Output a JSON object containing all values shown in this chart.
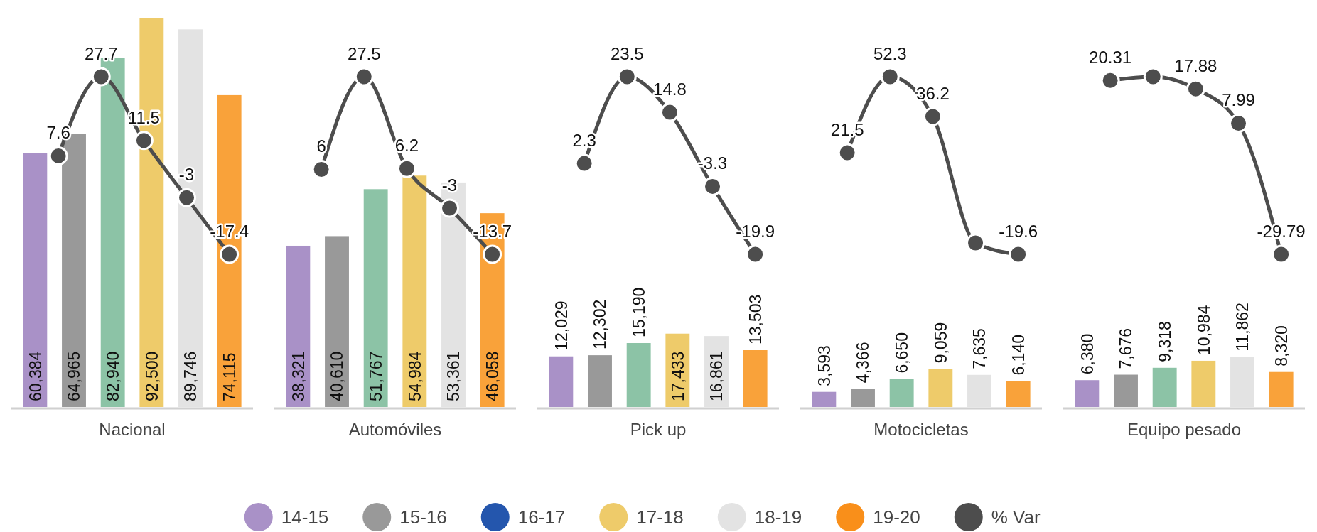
{
  "chart_data": [
    {
      "type": "bar",
      "xlabel": "Nacional",
      "categories": [
        null,
        null,
        null,
        null,
        null,
        null
      ],
      "series": [
        {
          "colors": [
            "#a991c7",
            "#999999",
            "#8cc3a6",
            "#eecb6a",
            "#e3e3e3",
            "#f9a23a"
          ],
          "values": [
            60384,
            64965,
            82940,
            92500,
            89746,
            74115
          ],
          "value_labels": [
            "60,384",
            "64,965",
            "82,940",
            "92,500",
            "89,746",
            "74,115"
          ]
        }
      ]
    },
    {
      "type": "line",
      "categories": [
        null,
        null,
        null,
        null,
        null
      ],
      "marker": "circle",
      "series": [
        {
          "color": "#4d4d4d",
          "values": [
            7.6,
            27.7,
            11.5,
            -3,
            -17.4
          ],
          "value_labels": [
            "7.6",
            "27.7",
            "11.5",
            "-3",
            "-17.4"
          ]
        }
      ]
    },
    {
      "type": "bar",
      "xlabel": "Automóviles",
      "categories": [
        null,
        null,
        null,
        null,
        null,
        null
      ],
      "series": [
        {
          "colors": [
            "#a991c7",
            "#999999",
            "#8cc3a6",
            "#eecb6a",
            "#e3e3e3",
            "#f9a23a"
          ],
          "values": [
            38321,
            40610,
            51767,
            54984,
            53361,
            46058
          ],
          "value_labels": [
            "38,321",
            "40,610",
            "51,767",
            "54,984",
            "53,361",
            "46,058"
          ]
        }
      ]
    },
    {
      "type": "line",
      "categories": [
        null,
        null,
        null,
        null,
        null
      ],
      "marker": "circle",
      "series": [
        {
          "color": "#4d4d4d",
          "values": [
            6,
            27.5,
            6.2,
            -3,
            -13.7
          ],
          "value_labels": [
            "6",
            "27.5",
            "6.2",
            "-3",
            "-13.7"
          ]
        }
      ]
    },
    {
      "type": "bar",
      "xlabel": "Pick up",
      "categories": [
        null,
        null,
        null,
        null,
        null,
        null
      ],
      "series": [
        {
          "colors": [
            "#a991c7",
            "#999999",
            "#8cc3a6",
            "#eecb6a",
            "#e3e3e3",
            "#f9a23a"
          ],
          "values": [
            12029,
            12302,
            15190,
            17433,
            16861,
            13503
          ],
          "value_labels": [
            "12,029",
            "12,302",
            "15,190",
            "17,433",
            "16,861",
            "13,503"
          ]
        }
      ]
    },
    {
      "type": "line",
      "categories": [
        null,
        null,
        null,
        null,
        null
      ],
      "marker": "circle",
      "series": [
        {
          "color": "#4d4d4d",
          "values": [
            2.3,
            23.5,
            14.8,
            -3.3,
            -19.9
          ],
          "value_labels": [
            "2.3",
            "23.5",
            "14.8",
            "-3.3",
            "-19.9"
          ]
        }
      ]
    },
    {
      "type": "bar",
      "xlabel": "Motocicletas",
      "categories": [
        null,
        null,
        null,
        null,
        null,
        null
      ],
      "series": [
        {
          "colors": [
            "#a991c7",
            "#999999",
            "#8cc3a6",
            "#eecb6a",
            "#e3e3e3",
            "#f9a23a"
          ],
          "values": [
            3593,
            4366,
            6650,
            9059,
            7635,
            6140
          ],
          "value_labels": [
            "3,593",
            "4,366",
            "6,650",
            "9,059",
            "7,635",
            "6,140"
          ]
        }
      ]
    },
    {
      "type": "line",
      "categories": [
        null,
        null,
        null,
        null,
        null
      ],
      "marker": "circle",
      "series": [
        {
          "color": "#4d4d4d",
          "values": [
            21.5,
            52.3,
            36.2,
            -15,
            -19.6
          ],
          "value_labels": [
            "21.5",
            "52.3",
            "36.2",
            null,
            "-19.6"
          ]
        }
      ]
    },
    {
      "type": "bar",
      "xlabel": "Equipo pesado",
      "categories": [
        null,
        null,
        null,
        null,
        null,
        null
      ],
      "series": [
        {
          "colors": [
            "#a991c7",
            "#999999",
            "#8cc3a6",
            "#eecb6a",
            "#e3e3e3",
            "#f9a23a"
          ],
          "values": [
            6380,
            7676,
            9318,
            10984,
            11862,
            8320
          ],
          "value_labels": [
            "6,380",
            "7,676",
            "9,318",
            "10,984",
            "11,862",
            "8,320"
          ]
        }
      ]
    },
    {
      "type": "line",
      "categories": [
        null,
        null,
        null,
        null,
        null
      ],
      "marker": "circle",
      "series": [
        {
          "color": "#4d4d4d",
          "values": [
            20.31,
            21.4,
            17.88,
            7.99,
            -29.79
          ],
          "value_labels": [
            "20.31",
            null,
            "17.88",
            "7.99",
            "-29.79"
          ]
        }
      ]
    },
    {
      "type": "other",
      "legend": "bottom",
      "series": [
        {
          "name": "14-15",
          "color": "#a991c7"
        },
        {
          "name": "15-16",
          "color": "#999999"
        },
        {
          "name": "16-17",
          "color": "#2456ad"
        },
        {
          "name": "17-18",
          "color": "#eecb6a"
        },
        {
          "name": "18-19",
          "color": "#e3e3e3"
        },
        {
          "name": "19-20",
          "color": "#f98f1a"
        },
        {
          "name": "% Var",
          "color": "#4d4d4d"
        }
      ]
    }
  ]
}
